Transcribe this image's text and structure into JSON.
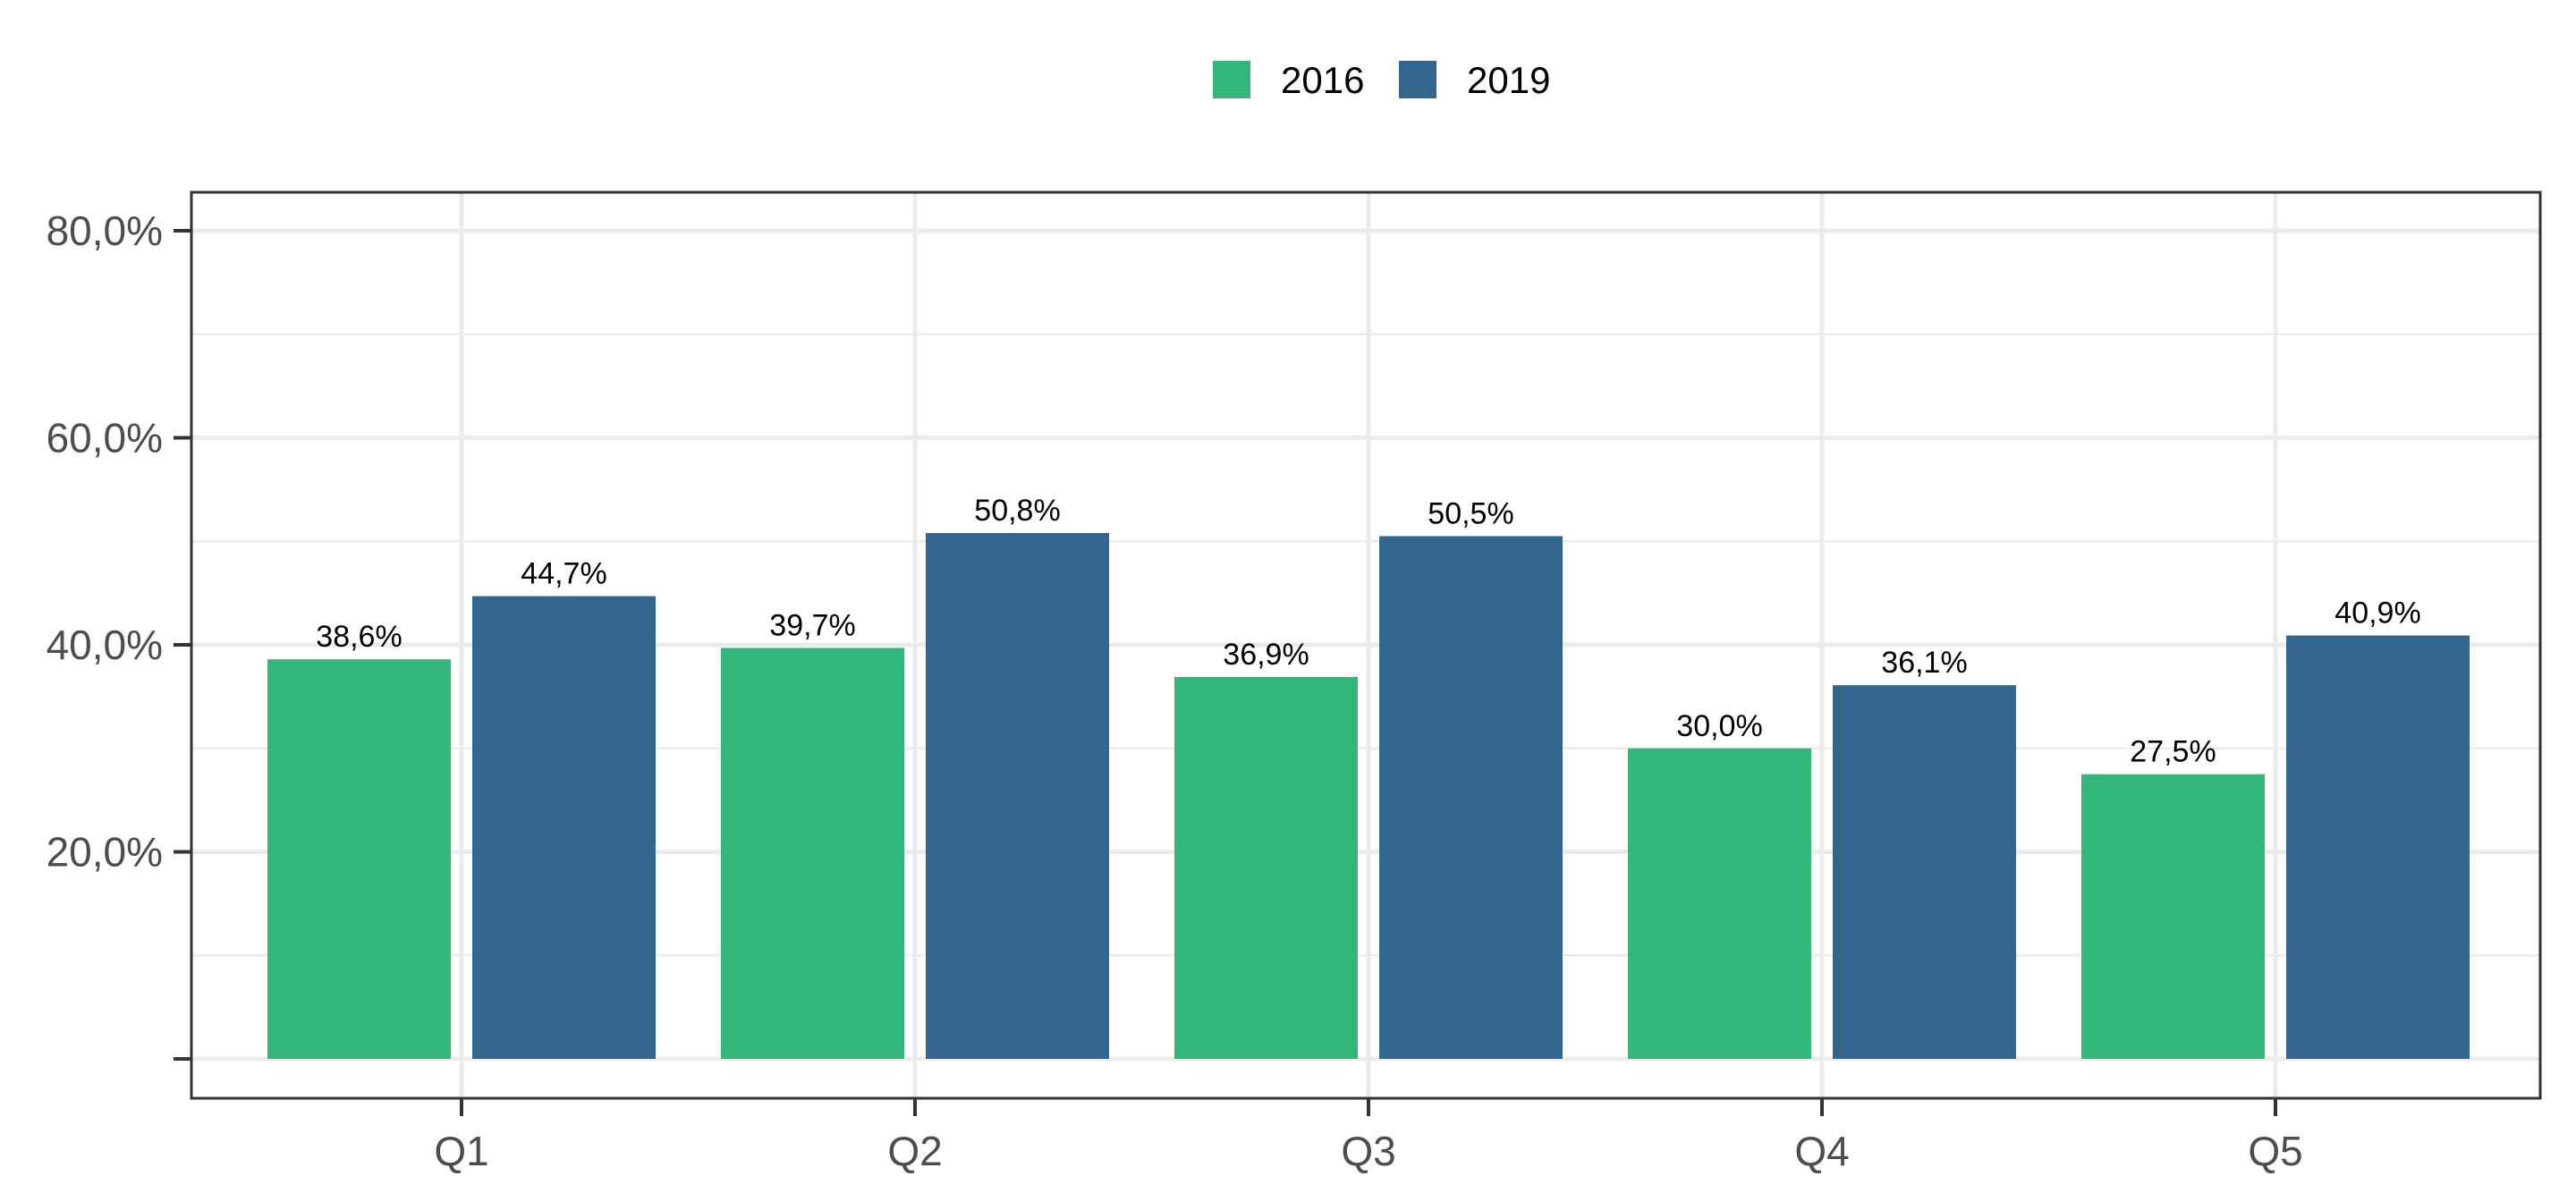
{
  "chart_data": {
    "type": "bar",
    "categories": [
      "Q1",
      "Q2",
      "Q3",
      "Q4",
      "Q5"
    ],
    "series": [
      {
        "name": "2016",
        "color": "#33b679",
        "values": [
          38.6,
          39.7,
          36.9,
          30.0,
          27.5
        ],
        "labels": [
          "38,6%",
          "39,7%",
          "36,9%",
          "30,0%",
          "27,5%"
        ]
      },
      {
        "name": "2019",
        "color": "#33668c",
        "values": [
          44.7,
          50.8,
          50.5,
          36.1,
          40.9
        ],
        "labels": [
          "44,7%",
          "50,8%",
          "50,5%",
          "36,1%",
          "40,9%"
        ]
      }
    ],
    "ylim": [
      0,
      80
    ],
    "yticks": [
      {
        "value": 20,
        "label": "20,0%"
      },
      {
        "value": 40,
        "label": "40,0%"
      },
      {
        "value": 60,
        "label": "60,0%"
      },
      {
        "value": 80,
        "label": "80,0%"
      }
    ],
    "title": "",
    "xlabel": "",
    "ylabel": "",
    "legend_position": "top",
    "grid": true
  }
}
